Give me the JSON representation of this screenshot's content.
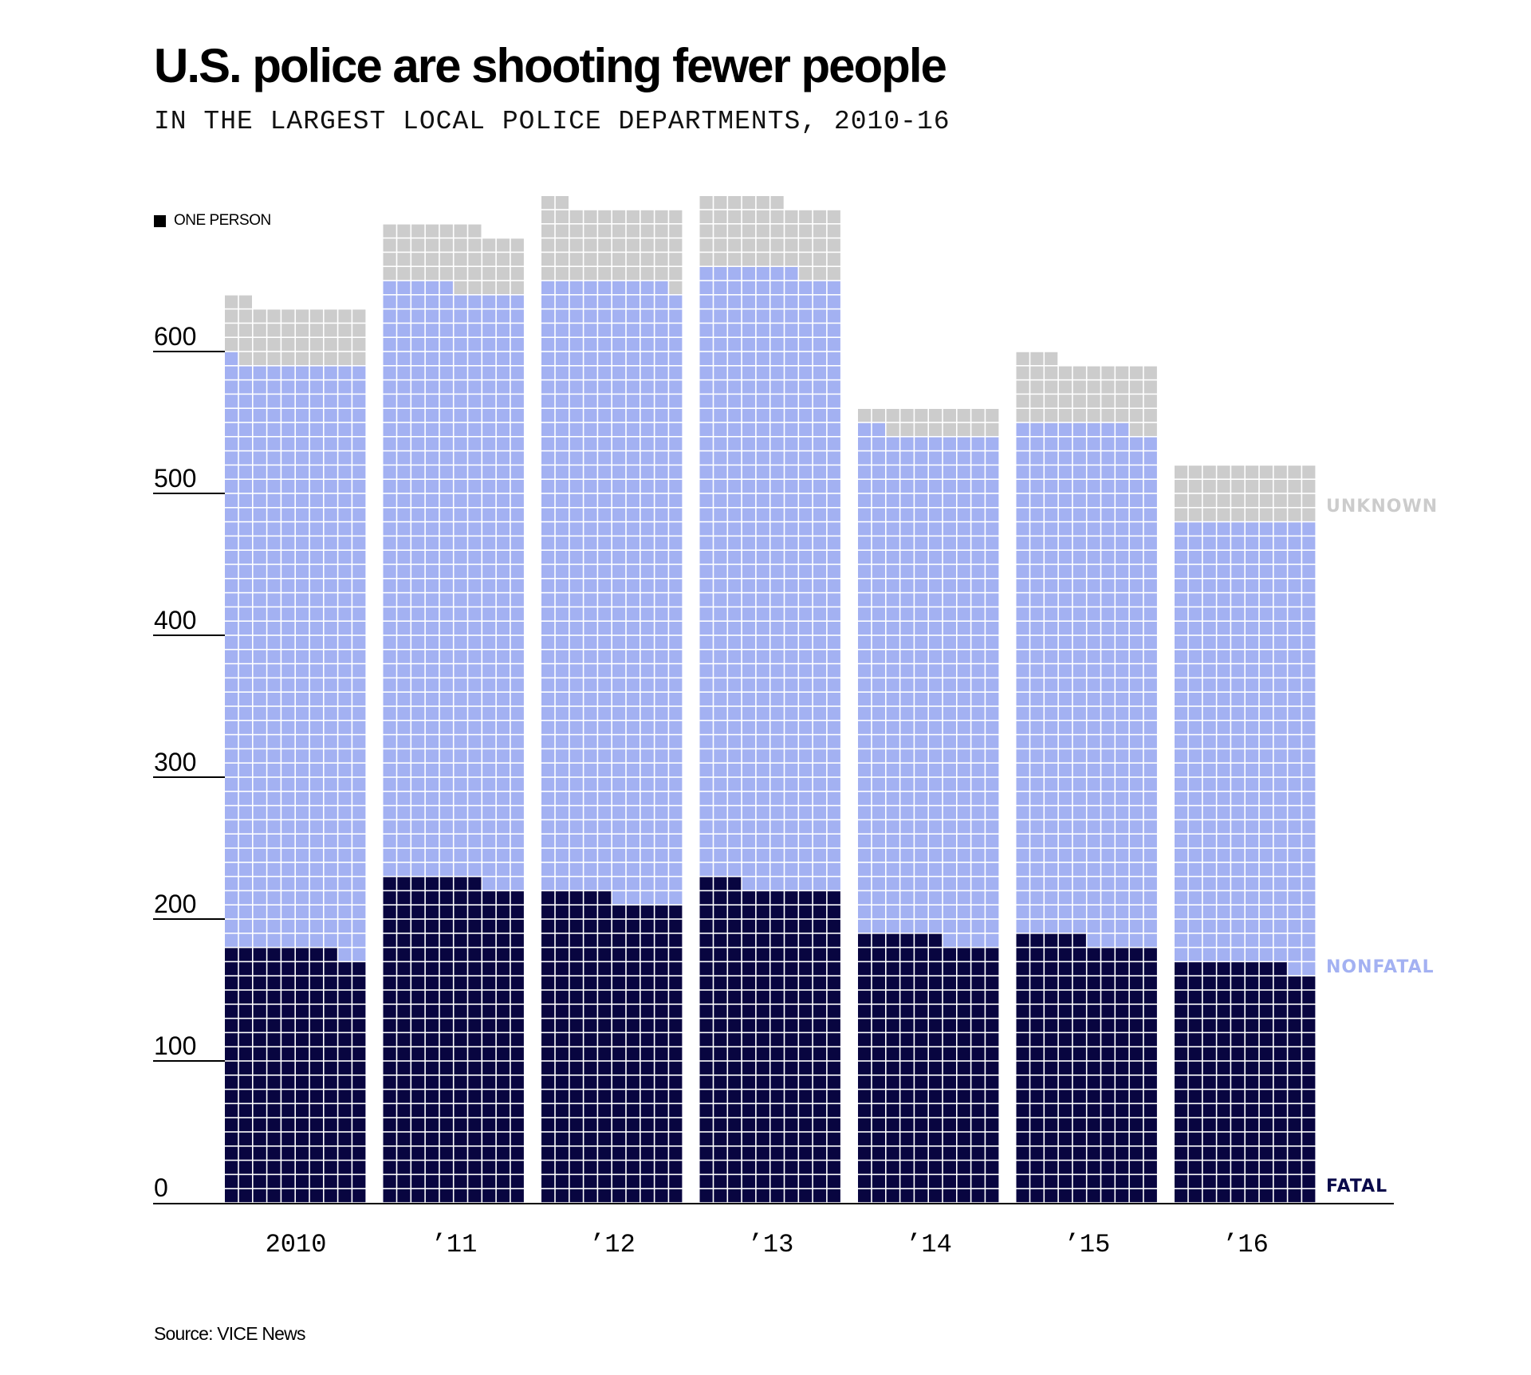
{
  "header": {
    "title": "U.S. police are shooting fewer people",
    "subtitle": "IN THE LARGEST LOCAL POLICE DEPARTMENTS, 2010-16"
  },
  "legend": {
    "label": "ONE PERSON"
  },
  "source": "Source: VICE News",
  "colors": {
    "fatal": "#080540",
    "nonfatal": "#a3b1f2",
    "unknown": "#cccccc",
    "fatal_label": "#0a0a4a",
    "nonfatal_label": "#a3b1f2",
    "unknown_label": "#cccccc"
  },
  "chart_data": {
    "type": "bar",
    "subtype": "stacked-waffle",
    "title": "U.S. police are shooting fewer people",
    "subtitle": "IN THE LARGEST LOCAL POLICE DEPARTMENTS, 2010-16",
    "unit_note": "Each square = one person; 10 squares per row",
    "categories": [
      "2010",
      "’11",
      "’12",
      "’13",
      "’14",
      "’15",
      "’16"
    ],
    "series": [
      {
        "name": "FATAL",
        "key": "fatal",
        "values": [
          178,
          227,
          215,
          223,
          186,
          185,
          168
        ]
      },
      {
        "name": "NONFATAL",
        "key": "nonfatal",
        "values": [
          413,
          418,
          434,
          434,
          356,
          363,
          312
        ]
      },
      {
        "name": "UNKNOWN",
        "key": "unknown",
        "values": [
          41,
          42,
          53,
          49,
          18,
          45,
          40
        ]
      }
    ],
    "totals": [
      632,
      687,
      702,
      706,
      560,
      593,
      520
    ],
    "xlabel": "",
    "ylabel": "",
    "yticks": [
      0,
      100,
      200,
      300,
      400,
      500,
      600
    ],
    "ylim": [
      0,
      720
    ],
    "grid": false,
    "legend_position": "top-left"
  }
}
